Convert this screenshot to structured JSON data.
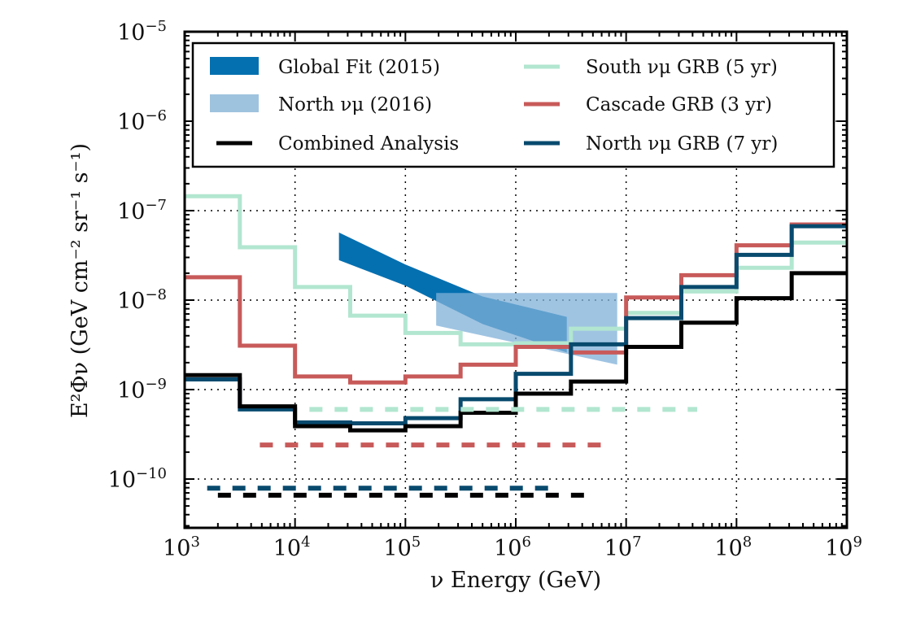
{
  "chart_data": {
    "type": "line",
    "title": "",
    "xlabel": "ν Energy (GeV)",
    "ylabel": "E²Φν (GeV cm⁻² sr⁻¹ s⁻¹)",
    "xscale": "log",
    "yscale": "log",
    "xlim": [
      1000,
      1000000000
    ],
    "ylim": [
      2.8e-11,
      1e-05
    ],
    "grid": true,
    "legend_position": "top",
    "x_ticks": [
      {
        "base": "10",
        "exp": "3",
        "value": 1000.0
      },
      {
        "base": "10",
        "exp": "4",
        "value": 10000.0
      },
      {
        "base": "10",
        "exp": "5",
        "value": 100000.0
      },
      {
        "base": "10",
        "exp": "6",
        "value": 1000000.0
      },
      {
        "base": "10",
        "exp": "7",
        "value": 10000000.0
      },
      {
        "base": "10",
        "exp": "8",
        "value": 100000000.0
      },
      {
        "base": "10",
        "exp": "9",
        "value": 1000000000.0
      }
    ],
    "y_ticks": [
      {
        "base": "10",
        "exp": "−5",
        "value": 1e-05
      },
      {
        "base": "10",
        "exp": "−6",
        "value": 1e-06
      },
      {
        "base": "10",
        "exp": "−7",
        "value": 1e-07
      },
      {
        "base": "10",
        "exp": "−8",
        "value": 1e-08
      },
      {
        "base": "10",
        "exp": "−9",
        "value": 1e-09
      },
      {
        "base": "10",
        "exp": "−10",
        "value": 1e-10
      }
    ],
    "bin_edges": [
      1000,
      3162,
      10000,
      31623,
      100000,
      316228,
      1000000,
      3162278,
      10000000,
      31622777,
      100000000,
      316227766,
      1000000000
    ],
    "bands": [
      {
        "name": "Global Fit (2015)",
        "color": "#0570b0",
        "opacity": 1.0,
        "x": [
          25000,
          100000,
          500000,
          2900000
        ],
        "upper": [
          5.7e-08,
          2.5e-08,
          1.1e-08,
          6.5e-09
        ],
        "lower": [
          2.8e-08,
          1.45e-08,
          5.4e-09,
          2.6e-09
        ]
      },
      {
        "name": "North νμ (2016)",
        "color": "#7fb0d8",
        "opacity": 0.75,
        "x": [
          190000,
          8300000
        ],
        "upper": [
          1.2e-08,
          1.2e-08
        ],
        "lower": [
          5.2e-09,
          1.9e-09
        ]
      }
    ],
    "series": [
      {
        "name": "South νμ GRB (5 yr)",
        "color": "#b2e6d0",
        "style": "step",
        "values": [
          1.45e-07,
          3.9e-08,
          1.4e-08,
          6.7e-09,
          4.3e-09,
          3.2e-09,
          3.3e-09,
          4.8e-09,
          7.2e-09,
          1.25e-08,
          2.3e-08,
          4.4e-08
        ]
      },
      {
        "name": "Cascade GRB (3 yr)",
        "color": "#c85a5a",
        "style": "step",
        "values": [
          1.8e-08,
          3.1e-09,
          1.4e-09,
          1.2e-09,
          1.4e-09,
          1.9e-09,
          3e-09,
          2.6e-09,
          1.07e-08,
          1.9e-08,
          4.1e-08,
          7e-08
        ]
      },
      {
        "name": "North νμ GRB (7 yr)",
        "color": "#084a6e",
        "style": "step",
        "values": [
          1.3e-09,
          6e-10,
          4.3e-10,
          4.2e-10,
          4.8e-10,
          7.8e-10,
          1.5e-09,
          3.2e-09,
          6.3e-09,
          1.4e-08,
          3.2e-08,
          6.7e-08
        ]
      },
      {
        "name": "Combined Analysis",
        "color": "#000000",
        "style": "step",
        "values": [
          1.45e-09,
          6.5e-10,
          3.9e-10,
          3.5e-10,
          3.9e-10,
          5.5e-10,
          9e-10,
          1.23e-09,
          3e-09,
          5.6e-09,
          1.05e-08,
          2e-08
        ]
      }
    ],
    "dashed_lines": [
      {
        "name": "South νμ GRB (5 yr) dashed",
        "color": "#b2e6d0",
        "y": 6e-10,
        "x_range": [
          13500,
          44000000
        ]
      },
      {
        "name": "Cascade GRB (3 yr) dashed",
        "color": "#c85a5a",
        "y": 2.4e-10,
        "x_range": [
          4800,
          6900000
        ]
      },
      {
        "name": "North νμ GRB (7 yr) dashed",
        "color": "#084a6e",
        "y": 7.9e-11,
        "x_range": [
          1600,
          2100000
        ]
      },
      {
        "name": "Combined Analysis dashed",
        "color": "#000000",
        "y": 6.6e-11,
        "x_range": [
          2000,
          5100000
        ]
      }
    ],
    "legend": [
      {
        "label": "Global Fit (2015)",
        "kind": "patch",
        "color": "#0570b0"
      },
      {
        "label": "North νμ (2016)",
        "kind": "patch",
        "color": "#9ec3de"
      },
      {
        "label": "Combined Analysis",
        "kind": "line",
        "color": "#000000"
      },
      {
        "label": "South νμ GRB (5 yr)",
        "kind": "line",
        "color": "#b2e6d0"
      },
      {
        "label": "Cascade GRB (3 yr)",
        "kind": "line",
        "color": "#c85a5a"
      },
      {
        "label": "North νμ GRB (7 yr)",
        "kind": "line",
        "color": "#084a6e"
      }
    ]
  }
}
